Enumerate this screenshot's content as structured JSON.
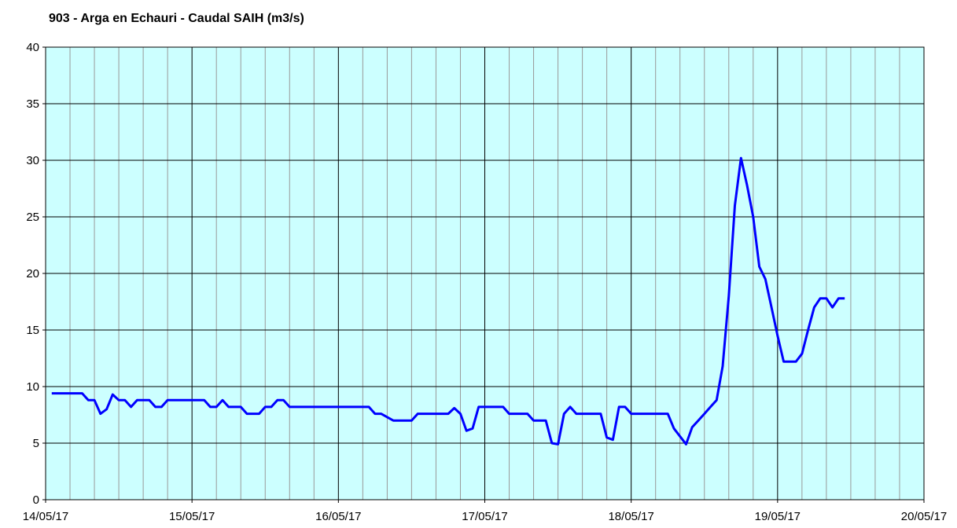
{
  "chart_data": {
    "type": "line",
    "title": "903 - Arga en Echauri - Caudal SAIH (m3/s)",
    "x": [
      "2017-05-14T01:00",
      "2017-05-14T06:00",
      "2017-05-14T07:00",
      "2017-05-14T08:00",
      "2017-05-14T09:00",
      "2017-05-14T10:00",
      "2017-05-14T11:00",
      "2017-05-14T12:00",
      "2017-05-14T13:00",
      "2017-05-14T14:00",
      "2017-05-14T15:00",
      "2017-05-14T17:00",
      "2017-05-14T18:00",
      "2017-05-14T19:00",
      "2017-05-14T20:00",
      "2017-05-15T02:00",
      "2017-05-15T03:00",
      "2017-05-15T04:00",
      "2017-05-15T05:00",
      "2017-05-15T06:00",
      "2017-05-15T08:00",
      "2017-05-15T09:00",
      "2017-05-15T11:00",
      "2017-05-15T12:00",
      "2017-05-15T13:00",
      "2017-05-15T14:00",
      "2017-05-15T15:00",
      "2017-05-15T16:00",
      "2017-05-16T05:00",
      "2017-05-16T06:00",
      "2017-05-16T07:00",
      "2017-05-16T09:00",
      "2017-05-16T12:00",
      "2017-05-16T13:00",
      "2017-05-16T18:00",
      "2017-05-16T19:00",
      "2017-05-16T20:00",
      "2017-05-16T21:00",
      "2017-05-16T22:00",
      "2017-05-16T23:00",
      "2017-05-17T03:00",
      "2017-05-17T04:00",
      "2017-05-17T07:00",
      "2017-05-17T08:00",
      "2017-05-17T10:00",
      "2017-05-17T11:00",
      "2017-05-17T12:00",
      "2017-05-17T13:00",
      "2017-05-17T14:00",
      "2017-05-17T15:00",
      "2017-05-17T19:00",
      "2017-05-17T20:00",
      "2017-05-17T21:00",
      "2017-05-17T22:00",
      "2017-05-17T23:00",
      "2017-05-18T00:00",
      "2017-05-18T06:00",
      "2017-05-18T07:00",
      "2017-05-18T09:00",
      "2017-05-18T10:00",
      "2017-05-18T11:00",
      "2017-05-18T12:00",
      "2017-05-18T13:00",
      "2017-05-18T14:00",
      "2017-05-18T15:00",
      "2017-05-18T16:00",
      "2017-05-18T17:00",
      "2017-05-18T18:00",
      "2017-05-18T19:00",
      "2017-05-18T20:00",
      "2017-05-18T21:00",
      "2017-05-18T22:00",
      "2017-05-18T23:00",
      "2017-05-19T00:00",
      "2017-05-19T01:00",
      "2017-05-19T03:00",
      "2017-05-19T04:00",
      "2017-05-19T05:00",
      "2017-05-19T06:00",
      "2017-05-19T07:00",
      "2017-05-19T08:00",
      "2017-05-19T09:00",
      "2017-05-19T10:00",
      "2017-05-19T11:00"
    ],
    "values": [
      9.4,
      9.4,
      8.8,
      8.8,
      7.6,
      8.0,
      9.3,
      8.8,
      8.8,
      8.2,
      8.8,
      8.8,
      8.2,
      8.2,
      8.8,
      8.8,
      8.2,
      8.2,
      8.8,
      8.2,
      8.2,
      7.6,
      7.6,
      8.2,
      8.2,
      8.8,
      8.8,
      8.2,
      8.2,
      7.6,
      7.6,
      7.0,
      7.0,
      7.6,
      7.6,
      8.1,
      7.6,
      6.1,
      6.3,
      8.2,
      8.2,
      7.6,
      7.6,
      7.0,
      7.0,
      5.0,
      4.9,
      7.6,
      8.2,
      7.6,
      7.6,
      5.5,
      5.3,
      8.2,
      8.2,
      7.6,
      7.6,
      6.3,
      4.9,
      6.4,
      7.0,
      7.6,
      8.2,
      8.8,
      11.8,
      18.0,
      26.0,
      30.2,
      27.8,
      25.0,
      20.6,
      19.5,
      17.0,
      14.5,
      12.2,
      12.2,
      12.9,
      15.0,
      17.0,
      17.8,
      17.8,
      17.0,
      17.8,
      17.8
    ],
    "color": "#0000ff",
    "xlim": [
      "2017-05-14T00:00",
      "2017-05-20T00:00"
    ],
    "xticks": [
      {
        "value": "2017-05-14T00:00",
        "label": "14/05/17"
      },
      {
        "value": "2017-05-15T00:00",
        "label": "15/05/17"
      },
      {
        "value": "2017-05-16T00:00",
        "label": "16/05/17"
      },
      {
        "value": "2017-05-17T00:00",
        "label": "17/05/17"
      },
      {
        "value": "2017-05-18T00:00",
        "label": "18/05/17"
      },
      {
        "value": "2017-05-19T00:00",
        "label": "19/05/17"
      },
      {
        "value": "2017-05-20T00:00",
        "label": "20/05/17"
      }
    ],
    "ylim": [
      0,
      40
    ],
    "yticks": [
      0,
      5,
      10,
      15,
      20,
      25,
      30,
      35,
      40
    ],
    "grid": true,
    "plot_background": "#ccffff"
  }
}
